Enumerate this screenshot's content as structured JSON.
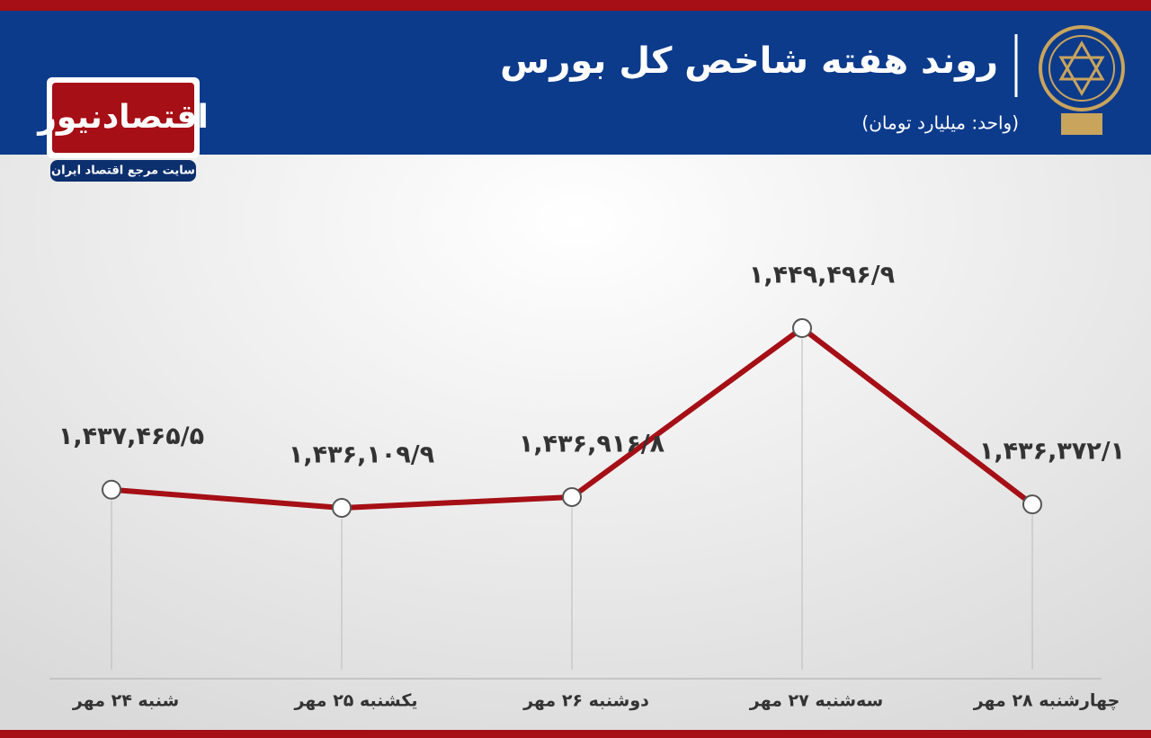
{
  "chart_data": {
    "type": "line",
    "title": "روند هفته شاخص کل بورس",
    "subtitle": "(واحد: میلیارد تومان)",
    "brand": {
      "name": "اقتصادنیوز",
      "tagline": "سایت مرجع اقتصاد ایران"
    },
    "categories": [
      "شنبه ۲۴ مهر",
      "یکشنبه ۲۵ مهر",
      "دوشنبه ۲۶ مهر",
      "سه‌شنبه ۲۷ مهر",
      "چهارشنبه ۲۸ مهر"
    ],
    "series": [
      {
        "name": "شاخص کل",
        "color": "#a50f15",
        "values": [
          1437465.5,
          1436109.9,
          1436916.8,
          1449496.9,
          1436372.1
        ],
        "value_labels": [
          "۱,۴۳۷,۴۶۵/۵",
          "۱,۴۳۶,۱۰۹/۹",
          "۱,۴۳۶,۹۱۶/۸",
          "۱,۴۴۹,۴۹۶/۹",
          "۱,۴۳۶,۳۷۲/۱"
        ]
      }
    ]
  }
}
